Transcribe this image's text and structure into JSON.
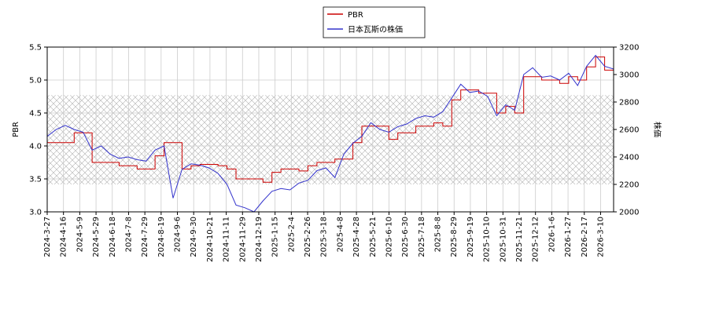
{
  "chart_data": {
    "type": "line",
    "title": "",
    "xlabel": "",
    "ylabel_left": "PBR",
    "ylabel_right": "株価",
    "ylim_left": [
      3.0,
      5.5
    ],
    "ylim_right": [
      2000,
      3200
    ],
    "y_ticks_left": [
      "3.0",
      "3.5",
      "4.0",
      "4.5",
      "5.0",
      "5.5"
    ],
    "y_ticks_right": [
      "2000",
      "2200",
      "2400",
      "2600",
      "2800",
      "3000",
      "3200"
    ],
    "x_ticks": [
      "2024-3-27",
      "2024-4-16",
      "2024-5-9",
      "2024-5-29",
      "2024-6-18",
      "2024-7-8",
      "2024-7-29",
      "2024-8-19",
      "2024-9-6",
      "2024-9-30",
      "2024-10-21",
      "2024-11-11",
      "2024-11-29",
      "2024-12-19",
      "2025-1-15",
      "2025-2-4",
      "2025-2-26",
      "2025-3-18",
      "2025-4-8",
      "2025-4-28",
      "2025-5-21",
      "2025-6-10",
      "2025-6-30",
      "2025-7-18",
      "2025-8-8",
      "2025-8-29",
      "2025-9-19",
      "2025-10-10",
      "2025-10-31",
      "2025-11-21",
      "2025-12-12",
      "2026-1-6",
      "2026-1-27",
      "2026-2-17",
      "2026-3-10"
    ],
    "grid": true,
    "legend_position": "top-center",
    "shaded_band_right_axis": [
      2200,
      2850
    ],
    "series": [
      {
        "name": "PBR",
        "axis": "left",
        "color": "#cc0000",
        "values": [
          4.05,
          4.05,
          4.05,
          4.2,
          4.2,
          3.75,
          3.75,
          3.75,
          3.7,
          3.7,
          3.65,
          3.65,
          3.85,
          4.05,
          4.05,
          3.65,
          3.7,
          3.72,
          3.72,
          3.7,
          3.65,
          3.5,
          3.5,
          3.5,
          3.45,
          3.6,
          3.65,
          3.65,
          3.62,
          3.7,
          3.75,
          3.75,
          3.8,
          3.8,
          4.05,
          4.3,
          4.3,
          4.3,
          4.1,
          4.2,
          4.2,
          4.3,
          4.3,
          4.35,
          4.3,
          4.7,
          4.85,
          4.85,
          4.8,
          4.8,
          4.5,
          4.6,
          4.5,
          5.05,
          5.05,
          5.0,
          5.0,
          4.95,
          5.05,
          5.0,
          5.2,
          5.35,
          5.15,
          5.15
        ]
      },
      {
        "name": "日本瓦斯の株価",
        "axis": "right",
        "color": "#3333cc",
        "values": [
          2550,
          2600,
          2630,
          2600,
          2580,
          2450,
          2480,
          2420,
          2390,
          2400,
          2380,
          2370,
          2450,
          2480,
          2100,
          2310,
          2350,
          2340,
          2320,
          2280,
          2200,
          2050,
          2030,
          2000,
          2080,
          2150,
          2170,
          2160,
          2210,
          2230,
          2300,
          2320,
          2250,
          2420,
          2500,
          2550,
          2650,
          2600,
          2580,
          2620,
          2640,
          2680,
          2700,
          2690,
          2730,
          2830,
          2930,
          2870,
          2880,
          2840,
          2700,
          2780,
          2740,
          3000,
          3050,
          2980,
          2990,
          2960,
          3010,
          2920,
          3060,
          3140,
          3060,
          3040
        ]
      }
    ]
  }
}
